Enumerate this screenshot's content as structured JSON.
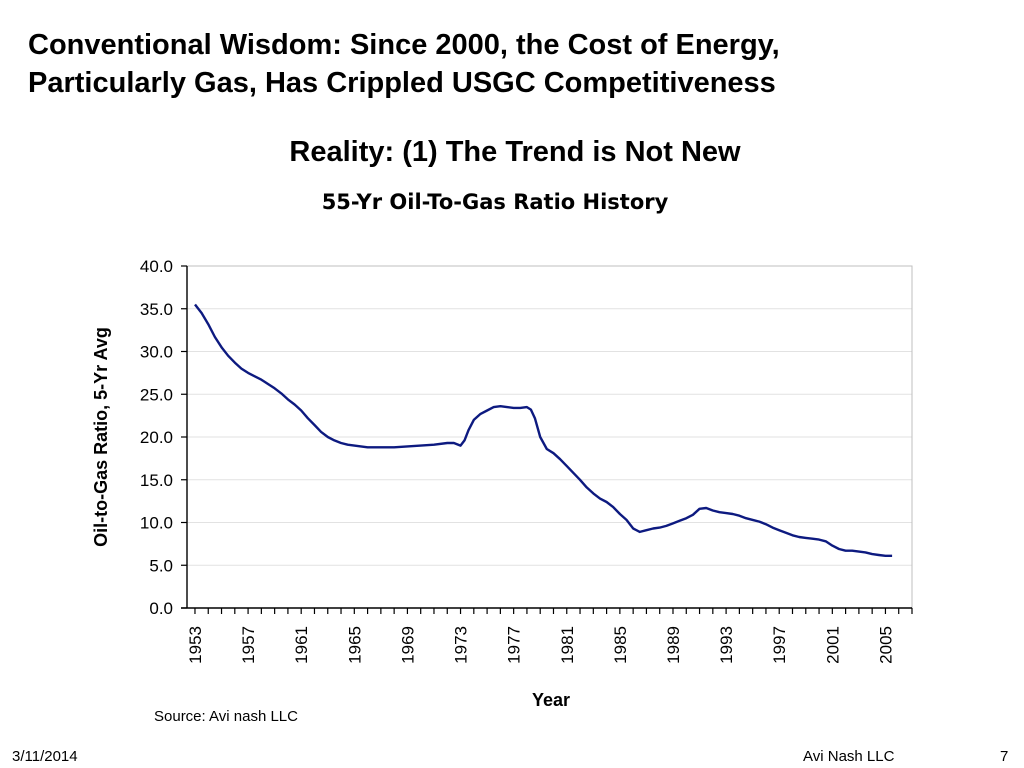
{
  "slide": {
    "title_line1": "Conventional Wisdom: Since 2000, the Cost of Energy,",
    "title_line2": "Particularly Gas, Has Crippled USGC Competitiveness",
    "subtitle": "Reality: (1) The Trend is Not New",
    "source": "Source: Avi nash LLC",
    "footer": {
      "date": "3/11/2014",
      "company": "Avi Nash LLC",
      "page": "7"
    }
  },
  "chart_data": {
    "type": "line",
    "title": "55-Yr Oil-To-Gas Ratio History",
    "xlabel": "Year",
    "ylabel": "Oil-to-Gas Ratio, 5-Yr Avg",
    "xlim": [
      1952.4,
      2007
    ],
    "ylim": [
      0,
      40
    ],
    "x_ticks": [
      "1953",
      "1957",
      "1961",
      "1965",
      "1969",
      "1973",
      "1977",
      "1981",
      "1985",
      "1989",
      "1993",
      "1997",
      "2001",
      "2005"
    ],
    "y_ticks": [
      "0.0",
      "5.0",
      "10.0",
      "15.0",
      "20.0",
      "25.0",
      "30.0",
      "35.0",
      "40.0"
    ],
    "grid": true,
    "line_color": "#0d1a80",
    "series": [
      {
        "x": [
          1953,
          1953.5,
          1954,
          1954.5,
          1955,
          1955.5,
          1956,
          1956.5,
          1957,
          1957.5,
          1958,
          1958.5,
          1959,
          1959.5,
          1960,
          1960.5,
          1961,
          1961.5,
          1962,
          1962.5,
          1963,
          1963.5,
          1964,
          1964.5,
          1965,
          1965.5,
          1966,
          1967,
          1968,
          1969,
          1970,
          1971,
          1972,
          1972.5,
          1973,
          1973.3,
          1973.6,
          1974,
          1974.5,
          1975,
          1975.5,
          1976,
          1976.5,
          1977,
          1977.5,
          1978,
          1978.3,
          1978.6,
          1979,
          1979.5,
          1980,
          1980.5,
          1981,
          1981.5,
          1982,
          1982.5,
          1983,
          1983.5,
          1984,
          1984.5,
          1985,
          1985.5,
          1986,
          1986.5,
          1987,
          1987.5,
          1988,
          1988.5,
          1989,
          1989.5,
          1990,
          1990.5,
          1991,
          1991.5,
          1992,
          1992.5,
          1993,
          1993.5,
          1994,
          1994.5,
          1995,
          1995.5,
          1996,
          1996.5,
          1997,
          1997.5,
          1998,
          1998.5,
          1999,
          1999.5,
          2000,
          2000.5,
          2001,
          2001.5,
          2002,
          2002.5,
          2003,
          2003.5,
          2004,
          2004.5,
          2005,
          2005.5
        ],
        "y": [
          35.5,
          34.5,
          33.2,
          31.7,
          30.5,
          29.5,
          28.7,
          28,
          27.5,
          27.1,
          26.7,
          26.2,
          25.7,
          25.1,
          24.4,
          23.8,
          23.1,
          22.2,
          21.4,
          20.6,
          20,
          19.6,
          19.3,
          19.1,
          19,
          18.9,
          18.8,
          18.8,
          18.8,
          18.9,
          19,
          19.1,
          19.3,
          19.3,
          19,
          19.6,
          20.8,
          22,
          22.7,
          23.1,
          23.5,
          23.6,
          23.5,
          23.4,
          23.4,
          23.5,
          23.2,
          22.2,
          20,
          18.6,
          18.1,
          17.4,
          16.6,
          15.8,
          15,
          14.1,
          13.4,
          12.8,
          12.4,
          11.8,
          11,
          10.3,
          9.3,
          8.9,
          9.1,
          9.3,
          9.4,
          9.6,
          9.9,
          10.2,
          10.5,
          10.9,
          11.6,
          11.7,
          11.4,
          11.2,
          11.1,
          11,
          10.8,
          10.5,
          10.3,
          10.1,
          9.8,
          9.4,
          9.1,
          8.8,
          8.5,
          8.3,
          8.2,
          8.1,
          8.0,
          7.8,
          7.3,
          6.9,
          6.7,
          6.7,
          6.6,
          6.5,
          6.3,
          6.2,
          6.1,
          6.1
        ]
      }
    ]
  }
}
